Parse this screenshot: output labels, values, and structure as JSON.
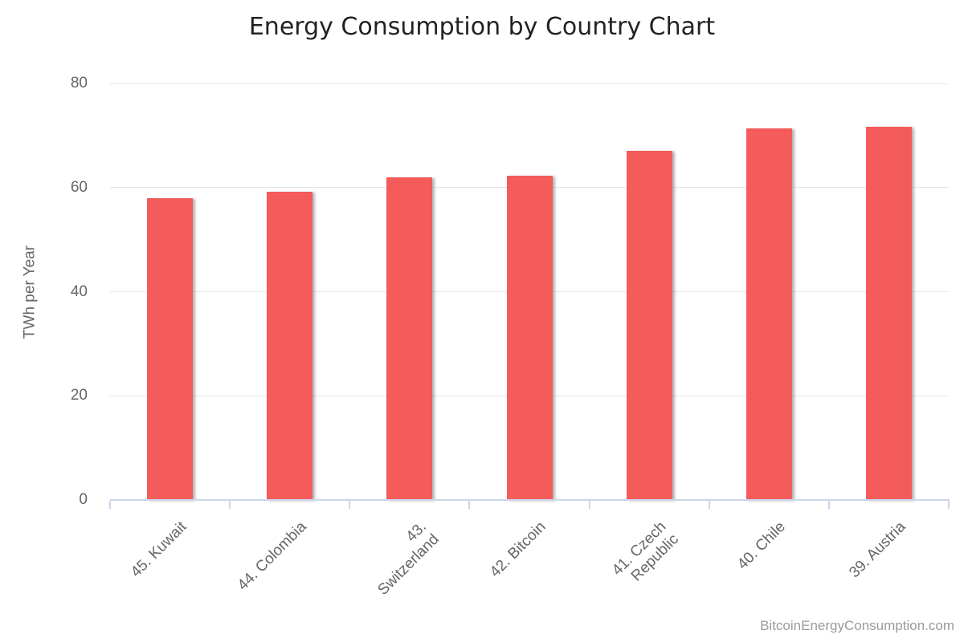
{
  "title": "Energy Consumption by Country Chart",
  "credit": "BitcoinEnergyConsumption.com",
  "chart_data": {
    "type": "bar",
    "title": "Energy Consumption by Country Chart",
    "categories": [
      "45. Kuwait",
      "44. Colombia",
      "43.\nSwitzerland",
      "42. Bitcoin",
      "41. Czech\nRepublic",
      "40. Chile",
      "39. Austria"
    ],
    "values": [
      57.9,
      59.2,
      62.0,
      62.3,
      67.0,
      71.3,
      71.7
    ],
    "xlabel": "",
    "ylabel": "TWh per Year",
    "ylim": [
      0,
      80
    ],
    "yticks": [
      0,
      20,
      40,
      60,
      80
    ],
    "grid": true,
    "legend": false,
    "colors": {
      "bar": "#f45b5b",
      "grid": "#e6e6e6",
      "axis_line": "#ccd6eb",
      "tick_label": "#666666",
      "axis_title": "#666666",
      "chart_title": "#222222",
      "credit": "#9b9b9b",
      "background": "#ffffff"
    }
  }
}
